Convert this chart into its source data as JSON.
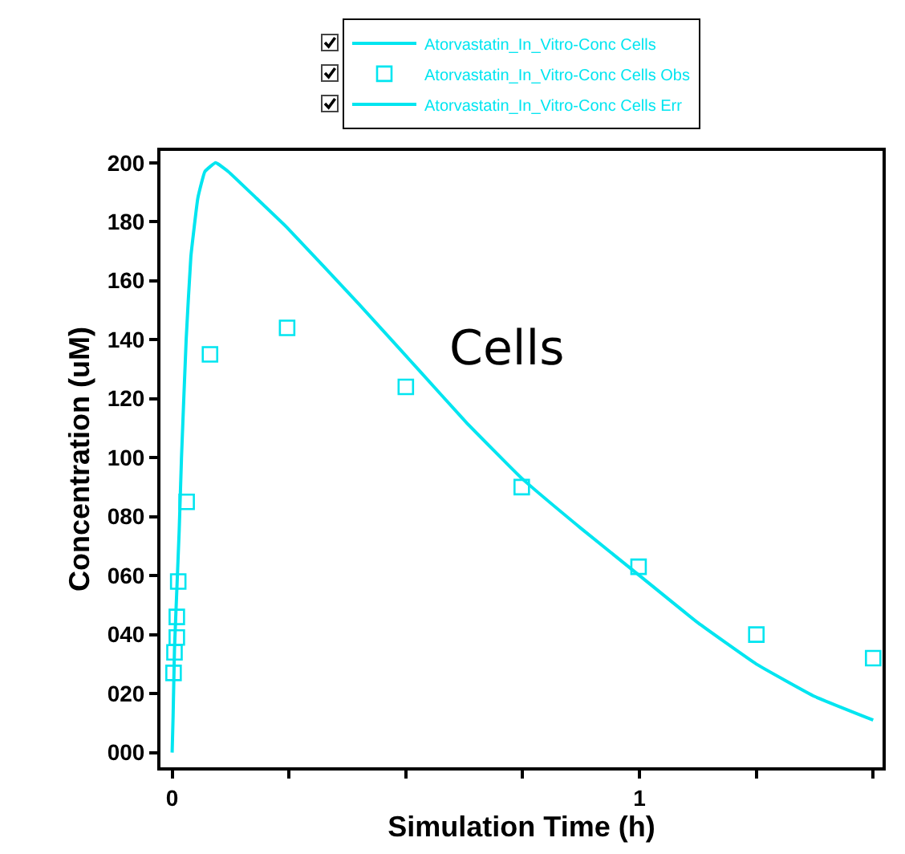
{
  "chart_data": {
    "type": "line",
    "xlabel": "Simulation Time (h)",
    "ylabel": "Concentration (uM)",
    "annotations": [
      "Cells"
    ],
    "xlim": [
      -0.025,
      1.52
    ],
    "xticks": [
      0,
      {
        "value": 0.25,
        "label": null
      },
      {
        "value": 0.5,
        "label": null
      },
      {
        "value": 0.75,
        "label": null
      },
      1,
      {
        "value": 1.25,
        "label": null
      },
      {
        "value": 1.5,
        "label": null
      }
    ],
    "ylim": [
      -5,
      204
    ],
    "yticks": [
      {
        "value": 0,
        "label": "000"
      },
      {
        "value": 20,
        "label": "020"
      },
      {
        "value": 40,
        "label": "040"
      },
      {
        "value": 60,
        "label": "060"
      },
      {
        "value": 80,
        "label": "080"
      },
      {
        "value": 100,
        "label": "100"
      },
      {
        "value": 120,
        "label": "120"
      },
      {
        "value": 140,
        "label": "140"
      },
      {
        "value": 160,
        "label": "160"
      },
      {
        "value": 180,
        "label": "180"
      },
      {
        "value": 200,
        "label": "200"
      }
    ],
    "grid": false,
    "legend": "top",
    "line_style": "solid",
    "series": [
      {
        "name": "Atorvastatin_In_Vitro-Conc Cells",
        "color": "#00e5f0",
        "marker": "none",
        "x": [
          0,
          0.002,
          0.005,
          0.01,
          0.015,
          0.02,
          0.03,
          0.04,
          0.055,
          0.07,
          0.093,
          0.12,
          0.18,
          0.246,
          0.4,
          0.526,
          0.629,
          0.748,
          0.875,
          1.0,
          1.125,
          1.25,
          1.375,
          1.5
        ],
        "values": [
          0,
          12,
          35,
          55,
          75,
          100,
          140,
          168,
          188,
          197,
          200,
          197,
          188,
          178,
          152,
          130,
          112,
          93,
          76,
          60,
          44,
          30,
          19,
          11
        ]
      },
      {
        "name": "Atorvastatin_In_Vitro-Conc Cells Obs",
        "type": "scatter",
        "color": "#00e5f0",
        "marker": "square",
        "x": [
          0.003,
          0.005,
          0.01,
          0.01,
          0.013,
          0.031,
          0.081,
          0.246,
          0.5,
          0.748,
          0.998,
          1.25,
          1.5
        ],
        "values": [
          27,
          34,
          39,
          46,
          58,
          85,
          135,
          144,
          124,
          90,
          63,
          40,
          32
        ]
      },
      {
        "name": "Atorvastatin_In_Vitro-Conc Cells Err",
        "color": "#00e5f0",
        "marker": "none"
      }
    ]
  }
}
